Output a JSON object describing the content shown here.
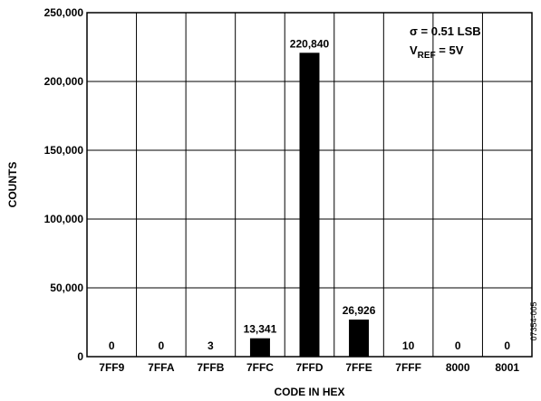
{
  "chart_data": {
    "type": "bar",
    "categories": [
      "7FF9",
      "7FFA",
      "7FFB",
      "7FFC",
      "7FFD",
      "7FFE",
      "7FFF",
      "8000",
      "8001"
    ],
    "values": [
      0,
      0,
      3,
      13341,
      220840,
      26926,
      10,
      0,
      0
    ],
    "value_labels": [
      "0",
      "0",
      "3",
      "13,341",
      "220,840",
      "26,926",
      "10",
      "0",
      "0"
    ],
    "xlabel": "CODE IN HEX",
    "ylabel": "COUNTS",
    "ylim": [
      0,
      250000
    ],
    "yticks": [
      0,
      50000,
      100000,
      150000,
      200000,
      250000
    ],
    "ytick_labels": [
      "0",
      "50,000",
      "100,000",
      "150,000",
      "200,000",
      "250,000"
    ],
    "grid": true,
    "bar_color": "#000000",
    "annotations": {
      "sigma": "σ = 0.51 LSB",
      "vref_main": "V",
      "vref_sub": "REF",
      "vref_value": " = 5V"
    },
    "figure_id": "07354-005"
  }
}
